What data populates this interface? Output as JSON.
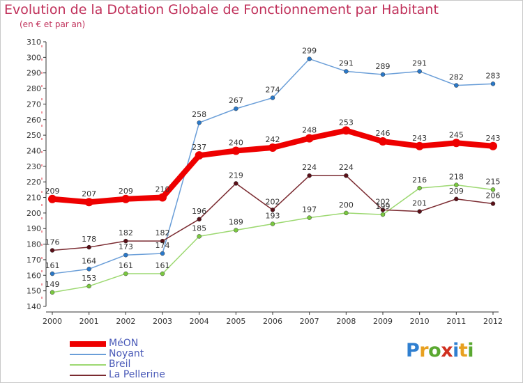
{
  "title": "Evolution de la Dotation Globale de Fonctionnement par Habitant",
  "subtitle": "(en € et par an)",
  "logo": {
    "letters": [
      {
        "ch": "P",
        "color": "#2f7fd0"
      },
      {
        "ch": "r",
        "color": "#e8a020"
      },
      {
        "ch": "o",
        "color": "#5aa830"
      },
      {
        "ch": "x",
        "color": "#d03020"
      },
      {
        "ch": "i",
        "color": "#2f7fd0"
      },
      {
        "ch": "t",
        "color": "#e8a020"
      },
      {
        "ch": "i",
        "color": "#5aa830"
      }
    ]
  },
  "chart_data": {
    "type": "line",
    "x": [
      "2000",
      "2001",
      "2002",
      "2003",
      "2004",
      "2005",
      "2006",
      "2007",
      "2008",
      "2009",
      "2010",
      "2011",
      "2012"
    ],
    "ylim": [
      140,
      310
    ],
    "yticks": [
      140,
      150,
      160,
      170,
      180,
      190,
      200,
      210,
      220,
      230,
      240,
      250,
      260,
      270,
      280,
      290,
      300,
      310
    ],
    "grid": false,
    "legend_position": "bottom-left",
    "series": [
      {
        "name": "MéON",
        "color": "#ee0000",
        "marker": "#ee0000",
        "width": 8,
        "values": [
          209,
          207,
          209,
          210,
          237,
          240,
          242,
          248,
          253,
          246,
          243,
          245,
          243
        ],
        "labels": [
          "209",
          "207",
          "209",
          "210",
          "237",
          "240",
          "242",
          "248",
          "253",
          "246",
          "243",
          "245",
          "243"
        ]
      },
      {
        "name": "Noyant",
        "color": "#6a9ed8",
        "marker": "#2a78c8",
        "width": 1.5,
        "values": [
          161,
          164,
          173,
          174,
          258,
          267,
          274,
          299,
          291,
          289,
          291,
          282,
          283
        ],
        "labels": [
          "161",
          "164",
          "173",
          "174",
          "258",
          "267",
          "274",
          "299",
          "291",
          "289",
          "291",
          "282",
          "283"
        ]
      },
      {
        "name": "Breil",
        "color": "#9cd870",
        "marker": "#7ac840",
        "width": 1.5,
        "values": [
          149,
          153,
          161,
          161,
          185,
          189,
          193,
          197,
          200,
          199,
          216,
          218,
          215
        ],
        "labels": [
          "149",
          "153",
          "161",
          "161",
          "185",
          "189",
          "193",
          "197",
          "200",
          "199",
          "216",
          "218",
          "215"
        ]
      },
      {
        "name": "La Pellerine",
        "color": "#7a2a30",
        "marker": "#5a1018",
        "width": 1.5,
        "values": [
          176,
          178,
          182,
          182,
          196,
          219,
          202,
          224,
          224,
          202,
          201,
          209,
          206
        ],
        "labels": [
          "176",
          "178",
          "182",
          "182",
          "196",
          "219",
          "202",
          "224",
          "224",
          "202",
          "201",
          "209",
          "206"
        ]
      }
    ]
  }
}
